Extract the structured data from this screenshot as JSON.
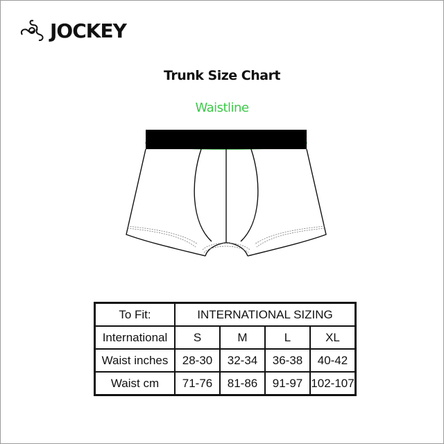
{
  "brand": {
    "name": "JOCKEY",
    "logo_icon": "jockey-swirl-logo"
  },
  "title": "Trunk Size Chart",
  "diagram": {
    "waist_label": "Waistline",
    "accent_color": "#3ec94a"
  },
  "table": {
    "header": {
      "label": "To Fit:",
      "group": "INTERNATIONAL SIZING"
    },
    "rows": [
      {
        "label": "International",
        "values": [
          "S",
          "M",
          "L",
          "XL"
        ]
      },
      {
        "label": "Waist inches",
        "values": [
          "28-30",
          "32-34",
          "36-38",
          "40-42"
        ]
      },
      {
        "label": "Waist cm",
        "values": [
          "71-76",
          "81-86",
          "91-97",
          "102-107"
        ]
      }
    ]
  }
}
